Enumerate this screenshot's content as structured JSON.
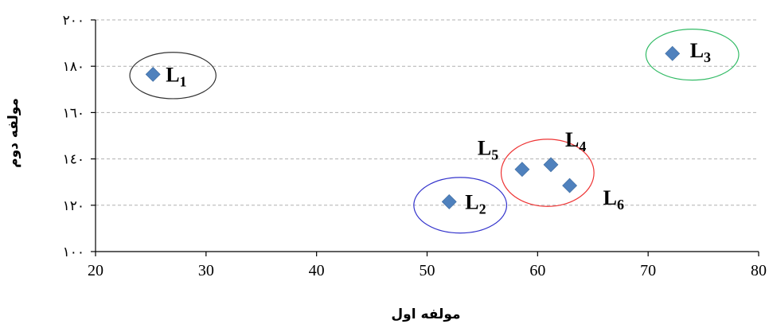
{
  "chart_data": {
    "type": "scatter",
    "xlabel": "مولفه اول",
    "ylabel": "مولفه دوم",
    "xlim": [
      20,
      80
    ],
    "ylim": [
      100,
      200
    ],
    "x_ticks": [
      "20",
      "30",
      "40",
      "50",
      "60",
      "70",
      "80"
    ],
    "y_ticks": [
      "١٠٠",
      "١٢٠",
      "١٤٠",
      "١٦٠",
      "١٨٠",
      "٢٠٠"
    ],
    "y_tick_values": [
      100,
      120,
      140,
      160,
      180,
      200
    ],
    "grid": "horizontal-dashed",
    "marker_color": "#4f81bd",
    "points": [
      {
        "label": "L",
        "sub": "1",
        "x": 25.2,
        "y": 176.5
      },
      {
        "label": "L",
        "sub": "2",
        "x": 52.0,
        "y": 121.5
      },
      {
        "label": "L",
        "sub": "3",
        "x": 72.2,
        "y": 185.5
      },
      {
        "label": "L",
        "sub": "4",
        "x": 61.2,
        "y": 137.5
      },
      {
        "label": "L",
        "sub": "5",
        "x": 58.6,
        "y": 135.5
      },
      {
        "label": "L",
        "sub": "6",
        "x": 62.9,
        "y": 128.5
      }
    ],
    "clusters": [
      {
        "x": 27.0,
        "y": 176.0,
        "rx": 3.9,
        "ry": 10.0,
        "color": "#333333"
      },
      {
        "x": 53.0,
        "y": 120.0,
        "rx": 4.2,
        "ry": 12.0,
        "color": "#3333cc"
      },
      {
        "x": 74.0,
        "y": 185.0,
        "rx": 4.2,
        "ry": 11.0,
        "color": "#33bb66"
      },
      {
        "x": 60.9,
        "y": 134.0,
        "rx": 4.2,
        "ry": 14.5,
        "color": "#ee3333"
      }
    ]
  }
}
